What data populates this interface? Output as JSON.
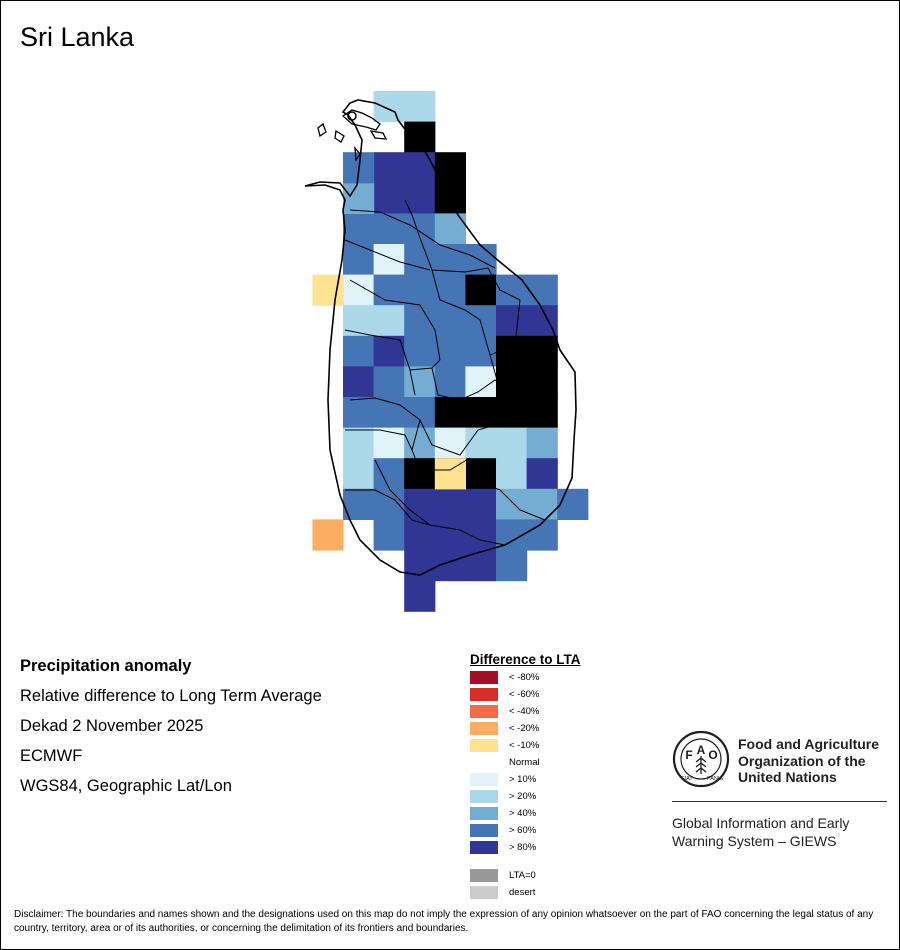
{
  "title": "Sri Lanka",
  "info": {
    "variable": "Precipitation anomaly",
    "description": "Relative difference to Long Term Average",
    "period": "Dekad 2 November 2025",
    "model": "ECMWF",
    "projection": "WGS84, Geographic Lat/Lon"
  },
  "legend": {
    "title": "Difference to LTA",
    "items": [
      {
        "label": "< -80%",
        "color": "#a50f26"
      },
      {
        "label": "< -60%",
        "color": "#d92d27"
      },
      {
        "label": "< -40%",
        "color": "#f26b46"
      },
      {
        "label": "< -20%",
        "color": "#fbae63"
      },
      {
        "label": "< -10%",
        "color": "#fee291"
      },
      {
        "label": "Normal",
        "color": "#ffffff"
      },
      {
        "label": "> 10%",
        "color": "#e0f3f8"
      },
      {
        "label": "> 20%",
        "color": "#abd9e9"
      },
      {
        "label": "> 40%",
        "color": "#74add1"
      },
      {
        "label": "> 60%",
        "color": "#4575b5"
      },
      {
        "label": "> 80%",
        "color": "#313695"
      }
    ],
    "extra": [
      {
        "label": "LTA=0",
        "color": "#999999"
      },
      {
        "label": "desert",
        "color": "#cccccc"
      }
    ]
  },
  "grid": {
    "rows": [
      "x11xxxxx",
      "xx5xxxxx",
      "x445xxxx",
      "x445xxxx",
      "3332xxxx",
      "30333xxx",
      "0333533x",
      "1133344x",
      "3433355x",
      "4323055x",
      "3335555x",
      "1020112x",
      "1355514x",
      "33444223",
      "x344433x",
      "xx4443xx",
      "xx4xxxxx"
    ],
    "extras": [
      {
        "col": -1,
        "row": 6,
        "cls": 4
      },
      {
        "col": -1,
        "row": 14,
        "cls": 3
      },
      {
        "col": 3,
        "row": 12,
        "cls": 4
      },
      {
        "col": 0,
        "row": 3,
        "cls": 2
      },
      {
        "col": 0,
        "row": 2,
        "cls": 3
      }
    ]
  },
  "fao": {
    "name_lines": [
      "Food and Agriculture",
      "Organization of the",
      "United Nations"
    ],
    "motto_left": "FIAT",
    "motto_right": "PANIS",
    "giews_lines": [
      "Global Information and Early",
      "Warning System – GIEWS"
    ]
  },
  "disclaimer": "Disclaimer: The boundaries and names shown and the designations used on this map do not imply the expression of any opinion whatsoever on the part of FAO concerning the legal status of any country, territory, area or of its authorities, or concerning the delimitation of its frontiers and boundaries."
}
